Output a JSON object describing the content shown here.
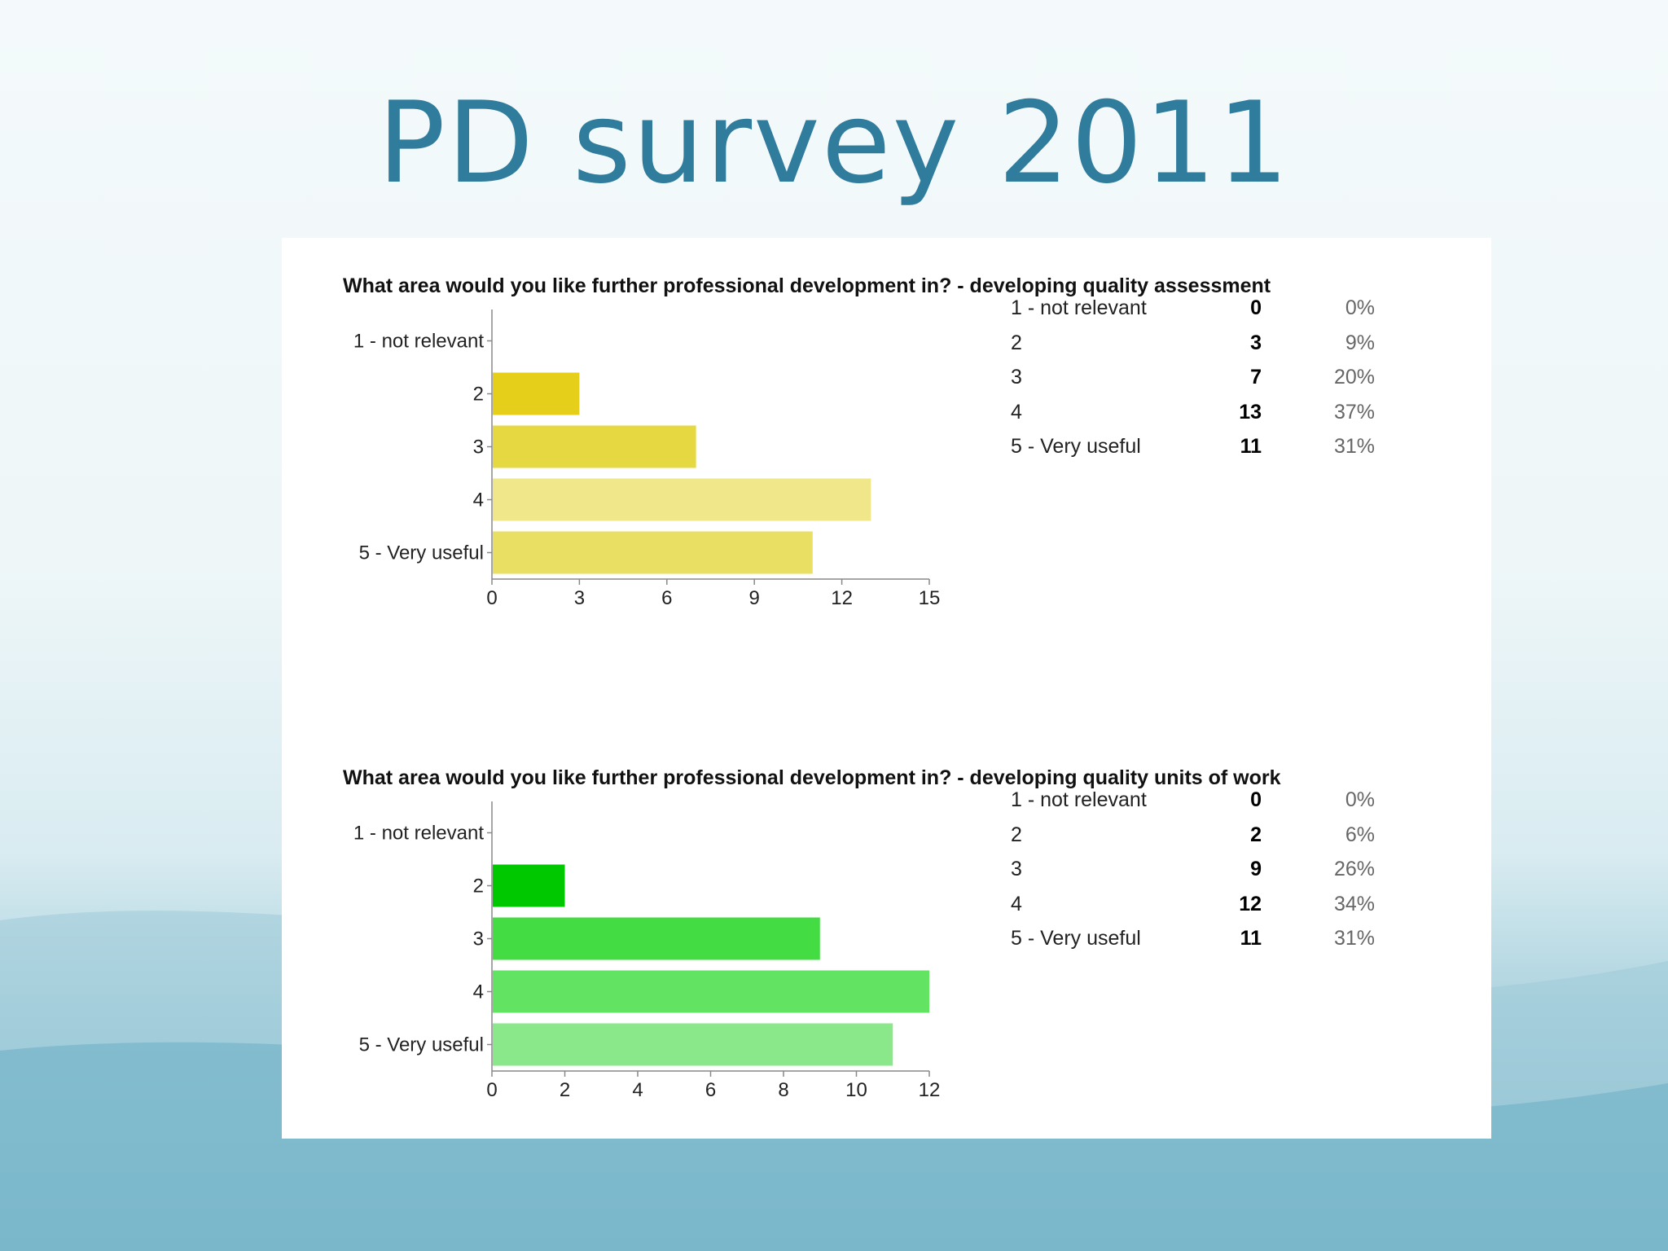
{
  "slide": {
    "title": "PD survey 2011"
  },
  "colors": {
    "title": "#2f7c9c"
  },
  "chart_data": [
    {
      "type": "bar",
      "orientation": "horizontal",
      "title": "What area would you like further professional development in? - developing quality assessment",
      "categories": [
        "1 - not relevant",
        "2",
        "3",
        "4",
        "5 - Very useful"
      ],
      "values": [
        0,
        3,
        7,
        13,
        11
      ],
      "percents": [
        "0%",
        "9%",
        "20%",
        "37%",
        "31%"
      ],
      "xlim": [
        0,
        15
      ],
      "xticks": [
        "0",
        "3",
        "6",
        "9",
        "12",
        "15"
      ],
      "colors": [
        "#e6cf1a",
        "#e6cf1a",
        "#e6d840",
        "#efe78a",
        "#e9df63"
      ],
      "grid": false,
      "legend": "right"
    },
    {
      "type": "bar",
      "orientation": "horizontal",
      "title": "What area would you like further professional development in? - developing quality units of work",
      "categories": [
        "1 - not relevant",
        "2",
        "3",
        "4",
        "5 - Very useful"
      ],
      "values": [
        0,
        2,
        9,
        12,
        11
      ],
      "percents": [
        "0%",
        "6%",
        "26%",
        "34%",
        "31%"
      ],
      "xlim": [
        0,
        12
      ],
      "xticks": [
        "0",
        "2",
        "4",
        "6",
        "8",
        "10",
        "12"
      ],
      "colors": [
        "#00c800",
        "#00c800",
        "#43dc43",
        "#62e462",
        "#8ae88a"
      ],
      "grid": false,
      "legend": "right"
    }
  ]
}
